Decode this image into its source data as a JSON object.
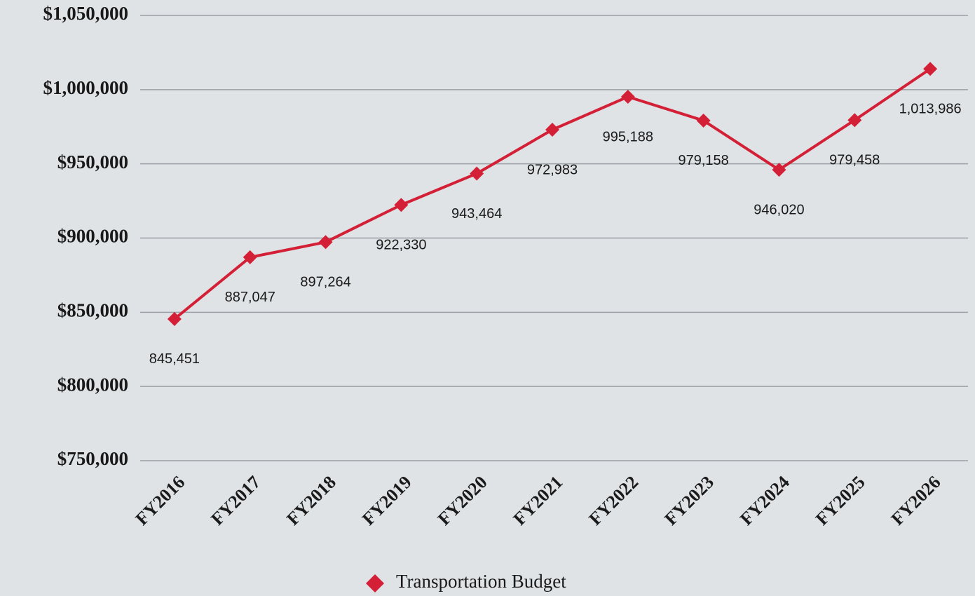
{
  "chart_data": {
    "type": "line",
    "categories": [
      "FY2016",
      "FY2017",
      "FY2018",
      "FY2019",
      "FY2020",
      "FY2021",
      "FY2022",
      "FY2023",
      "FY2024",
      "FY2025",
      "FY2026"
    ],
    "series": [
      {
        "name": "Transportation Budget",
        "color": "#d42036",
        "values": [
          845451,
          887047,
          897264,
          922330,
          943464,
          972983,
          995188,
          979158,
          946020,
          979458,
          1013986
        ],
        "value_labels": [
          "845,451",
          "887,047",
          "897,264",
          "922,330",
          "943,464",
          "972,983",
          "995,188",
          "979,158",
          "946,020",
          "979,458",
          "1,013,986"
        ]
      }
    ],
    "ylim": [
      750000,
      1050000
    ],
    "yticks": [
      {
        "value": 750000,
        "label": "$750,000"
      },
      {
        "value": 800000,
        "label": "$800,000"
      },
      {
        "value": 850000,
        "label": "$850,000"
      },
      {
        "value": 900000,
        "label": "$900,000"
      },
      {
        "value": 950000,
        "label": "$950,000"
      },
      {
        "value": 1000000,
        "label": "$1,000,000"
      },
      {
        "value": 1050000,
        "label": "$1,050,000"
      }
    ],
    "grid": true,
    "legend": "bottom"
  }
}
